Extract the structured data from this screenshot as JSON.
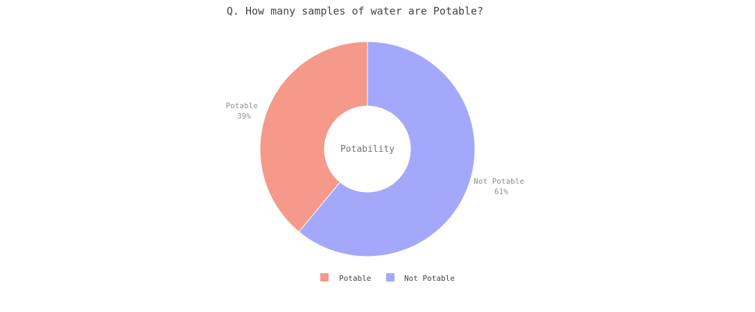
{
  "chart_data": {
    "type": "pie",
    "title": "Q. How many samples of water are Potable?",
    "center_text": "Potability",
    "hole": 0.4,
    "labels": [
      "Potable",
      "Not Potable"
    ],
    "values": [
      39,
      61
    ],
    "percent_labels": [
      "39%",
      "61%"
    ],
    "colors": [
      "#F5998A",
      "#A3A8FB"
    ],
    "legend": {
      "position": "bottom-center",
      "items": [
        "Potable",
        "Not Potable"
      ]
    },
    "label_position": "outside",
    "direction": "counterclockwise",
    "start_angle": "top"
  }
}
